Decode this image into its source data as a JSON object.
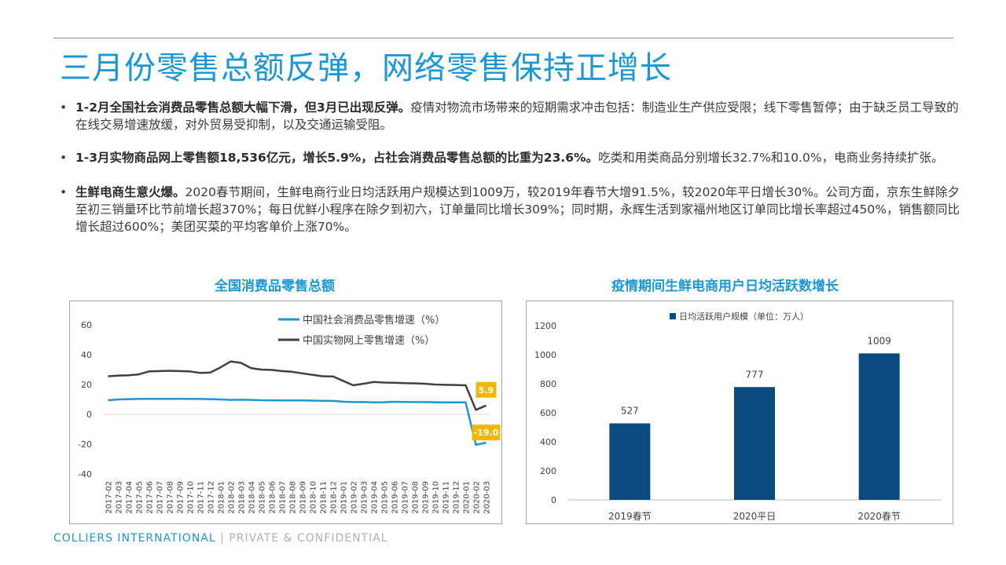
{
  "slide": {
    "title": "三月份零售总额反弹，网络零售保持正增长"
  },
  "bullets": [
    {
      "bold": "1-2月全国社会消费品零售总额大幅下滑，但3月已出现反弹。",
      "text": "疫情对物流市场带来的短期需求冲击包括：制造业生产供应受限；线下零售暂停；由于缺乏员工导致的在线交易增速放缓，对外贸易受抑制，以及交通运输受阻。"
    },
    {
      "bold": "1-3月实物商品网上零售额18,536亿元，增长5.9%，占社会消费品零售总额的比重为23.6%。",
      "text": "吃类和用类商品分别增长32.7%和10.0%，电商业务持续扩张。"
    },
    {
      "bold": "生鲜电商生意火爆。",
      "text": "2020春节期间，生鲜电商行业日均活跃用户规模达到1009万，较2019年春节大增91.5%，较2020年平日增长30%。公司方面，京东生鲜除夕至初三销量环比节前增长超370%；每日优鲜小程序在除夕到初六，订单量同比增长309%；同时期，永辉生活到家福州地区订单同比增长率超过450%，销售额同比增长超过600%；美团买菜的平均客单价上涨70%。"
    }
  ],
  "bullet_symbol": "•",
  "footer": {
    "brand": "COLLIERS INTERNATIONAL",
    "separator": "|",
    "confidential": "PRIVATE & CONFIDENTIAL"
  },
  "colors": {
    "accent": "#1a97d4",
    "navy": "#0b4a7f",
    "dark_series": "#404040",
    "label_badge": "#f2b705"
  },
  "chart_data": [
    {
      "type": "line",
      "title": "全国消费品零售总额",
      "x": [
        "2017-02",
        "2017-03",
        "2017-04",
        "2017-05",
        "2017-06",
        "2017-07",
        "2017-08",
        "2017-09",
        "2017-10",
        "2017-11",
        "2017-12",
        "2018-01",
        "2018-02",
        "2018-03",
        "2018-04",
        "2018-05",
        "2018-06",
        "2018-07",
        "2018-08",
        "2018-09",
        "2018-10",
        "2018-11",
        "2018-12",
        "2019-01",
        "2019-02",
        "2019-03",
        "2019-04",
        "2019-05",
        "2019-06",
        "2019-07",
        "2019-08",
        "2019-09",
        "2019-10",
        "2019-11",
        "2019-12",
        "2020-01",
        "2020-02",
        "2020-03"
      ],
      "series": [
        {
          "name": "中国社会消费品零售增速（%）",
          "color": "#1a97d4",
          "values": [
            9.5,
            10.0,
            10.2,
            10.3,
            10.4,
            10.4,
            10.4,
            10.4,
            10.3,
            10.3,
            10.2,
            10.0,
            9.7,
            9.8,
            9.7,
            9.5,
            9.4,
            9.3,
            9.3,
            9.3,
            9.2,
            9.1,
            9.0,
            8.5,
            8.2,
            8.3,
            8.0,
            8.1,
            8.4,
            8.3,
            8.2,
            8.2,
            8.1,
            8.0,
            8.0,
            8.0,
            -20.5,
            -19.0
          ]
        },
        {
          "name": "中国实物网上零售增速（%）",
          "color": "#404040",
          "values": [
            25.5,
            26.0,
            26.2,
            26.8,
            28.8,
            29.0,
            29.2,
            29.0,
            28.8,
            27.8,
            28.0,
            31.5,
            35.5,
            34.5,
            31.0,
            30.0,
            29.8,
            29.0,
            28.5,
            27.5,
            26.5,
            25.5,
            25.4,
            22.5,
            19.5,
            20.5,
            21.7,
            21.3,
            21.2,
            20.9,
            20.8,
            20.5,
            20.0,
            19.8,
            19.7,
            19.5,
            3.0,
            5.9
          ]
        }
      ],
      "data_labels": [
        {
          "series": 1,
          "index": 37,
          "text": "5.9"
        },
        {
          "series": 0,
          "index": 37,
          "text": "-19.0"
        }
      ],
      "yticks": [
        -40,
        -20,
        0,
        20,
        40,
        60
      ],
      "ylim": [
        -40,
        60
      ],
      "legend": "top"
    },
    {
      "type": "bar",
      "title": "疫情期间生鲜电商用户日均活跃数增长",
      "categories": [
        "2019春节",
        "2020平日",
        "2020春节"
      ],
      "series": [
        {
          "name": "日均活跃用户规模（单位：万人）",
          "values": [
            527,
            777,
            1009
          ]
        }
      ],
      "yticks": [
        0,
        200,
        400,
        600,
        800,
        1000,
        1200
      ],
      "ylim": [
        0,
        1200
      ],
      "legend": "top"
    }
  ]
}
